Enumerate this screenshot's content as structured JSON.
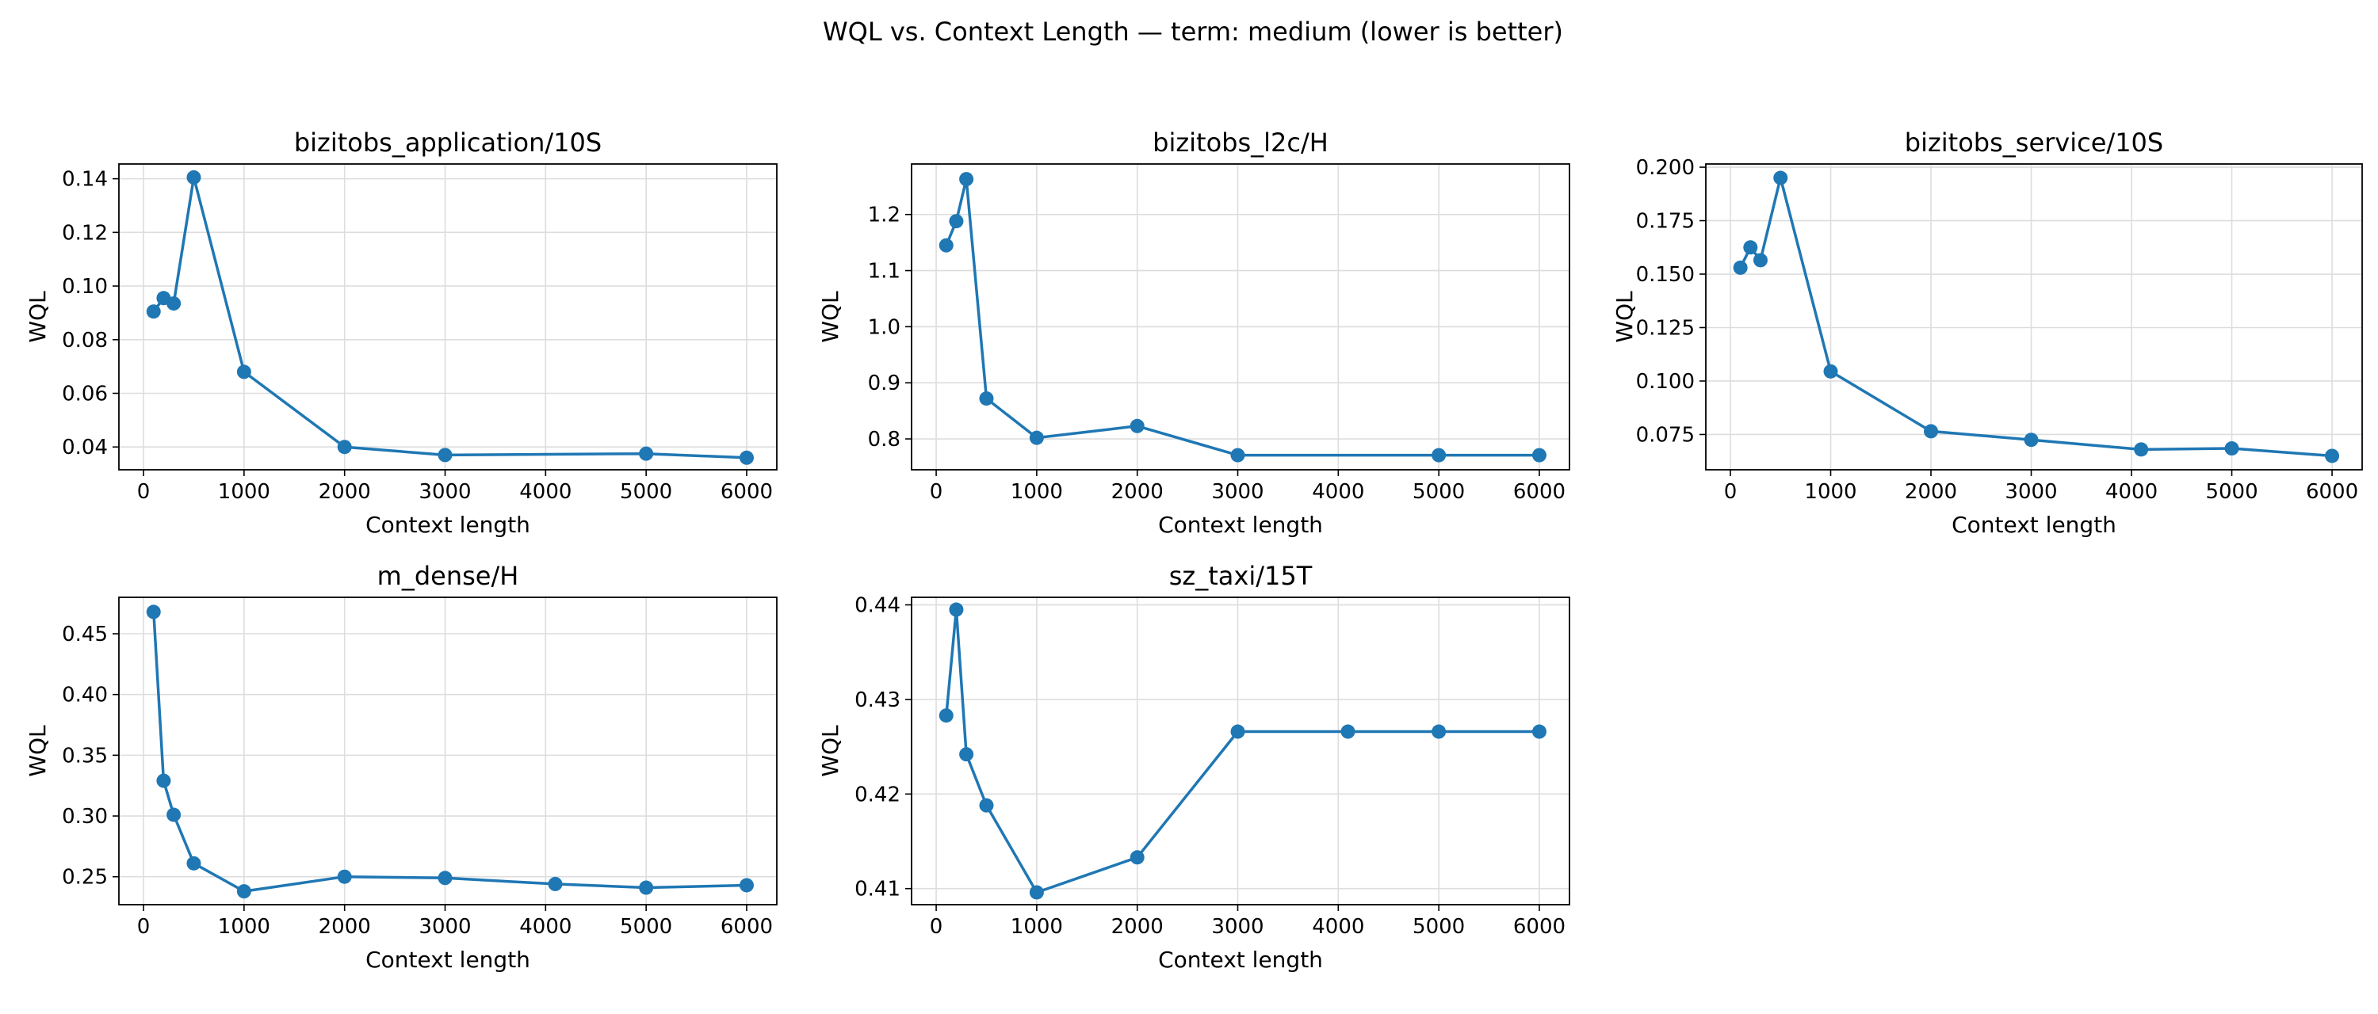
{
  "figure": {
    "title": "WQL vs. Context Length — term: medium (lower is better)"
  },
  "style": {
    "series_color": "#1f77b4",
    "grid_color": "#dddddd",
    "axes_color": "#000000"
  },
  "chart_data": [
    {
      "type": "line",
      "title": "bizitobs_application/10S",
      "xlabel": "Context length",
      "ylabel": "WQL",
      "xlim": [
        -245,
        6300
      ],
      "ylim": [
        0.0315,
        0.1455
      ],
      "xticks": [
        0,
        1000,
        2000,
        3000,
        4000,
        5000,
        6000
      ],
      "yticks": [
        0.04,
        0.06,
        0.08,
        0.1,
        0.12,
        0.14
      ],
      "ytick_labels": [
        "0.04",
        "0.06",
        "0.08",
        "0.10",
        "0.12",
        "0.14"
      ],
      "grid": true,
      "x": [
        100,
        200,
        300,
        500,
        1000,
        2000,
        3000,
        5000,
        6000
      ],
      "y": [
        0.0905,
        0.0955,
        0.0935,
        0.1405,
        0.068,
        0.04,
        0.037,
        0.0375,
        0.036
      ]
    },
    {
      "type": "line",
      "title": "bizitobs_l2c/H",
      "xlabel": "Context length",
      "ylabel": "WQL",
      "xlim": [
        -245,
        6300
      ],
      "ylim": [
        0.745,
        1.29
      ],
      "xticks": [
        0,
        1000,
        2000,
        3000,
        4000,
        5000,
        6000
      ],
      "yticks": [
        0.8,
        0.9,
        1.0,
        1.1,
        1.2
      ],
      "ytick_labels": [
        "0.8",
        "0.9",
        "1.0",
        "1.1",
        "1.2"
      ],
      "grid": true,
      "x": [
        100,
        200,
        300,
        500,
        1000,
        2000,
        3000,
        5000,
        6000
      ],
      "y": [
        1.145,
        1.188,
        1.263,
        0.872,
        0.802,
        0.823,
        0.771,
        0.771,
        0.771
      ]
    },
    {
      "type": "line",
      "title": "bizitobs_service/10S",
      "xlabel": "Context length",
      "ylabel": "WQL",
      "xlim": [
        -245,
        6300
      ],
      "ylim": [
        0.0585,
        0.2015
      ],
      "xticks": [
        0,
        1000,
        2000,
        3000,
        4000,
        5000,
        6000
      ],
      "yticks": [
        0.075,
        0.1,
        0.125,
        0.15,
        0.175,
        0.2
      ],
      "ytick_labels": [
        "0.075",
        "0.100",
        "0.125",
        "0.150",
        "0.175",
        "0.200"
      ],
      "grid": true,
      "x": [
        100,
        200,
        300,
        500,
        1000,
        2000,
        3000,
        4096,
        5000,
        6000
      ],
      "y": [
        0.153,
        0.1625,
        0.1565,
        0.195,
        0.1045,
        0.0765,
        0.0725,
        0.068,
        0.0685,
        0.065
      ]
    },
    {
      "type": "line",
      "title": "m_dense/H",
      "xlabel": "Context length",
      "ylabel": "WQL",
      "xlim": [
        -245,
        6300
      ],
      "ylim": [
        0.227,
        0.48
      ],
      "xticks": [
        0,
        1000,
        2000,
        3000,
        4000,
        5000,
        6000
      ],
      "yticks": [
        0.25,
        0.3,
        0.35,
        0.4,
        0.45
      ],
      "ytick_labels": [
        "0.25",
        "0.30",
        "0.35",
        "0.40",
        "0.45"
      ],
      "grid": true,
      "x": [
        100,
        200,
        300,
        500,
        1000,
        2000,
        3000,
        4096,
        5000,
        6000
      ],
      "y": [
        0.468,
        0.329,
        0.301,
        0.261,
        0.238,
        0.25,
        0.249,
        0.244,
        0.241,
        0.243
      ]
    },
    {
      "type": "line",
      "title": "sz_taxi/15T",
      "xlabel": "Context length",
      "ylabel": "WQL",
      "xlim": [
        -245,
        6300
      ],
      "ylim": [
        0.4083,
        0.4408
      ],
      "xticks": [
        0,
        1000,
        2000,
        3000,
        4000,
        5000,
        6000
      ],
      "yticks": [
        0.41,
        0.42,
        0.43,
        0.44
      ],
      "ytick_labels": [
        "0.41",
        "0.42",
        "0.43",
        "0.44"
      ],
      "grid": true,
      "x": [
        100,
        200,
        300,
        500,
        1000,
        2000,
        3000,
        4096,
        5000,
        6000
      ],
      "y": [
        0.4283,
        0.4395,
        0.4242,
        0.4188,
        0.4096,
        0.4133,
        0.4266,
        0.4266,
        0.4266,
        0.4266
      ]
    }
  ]
}
